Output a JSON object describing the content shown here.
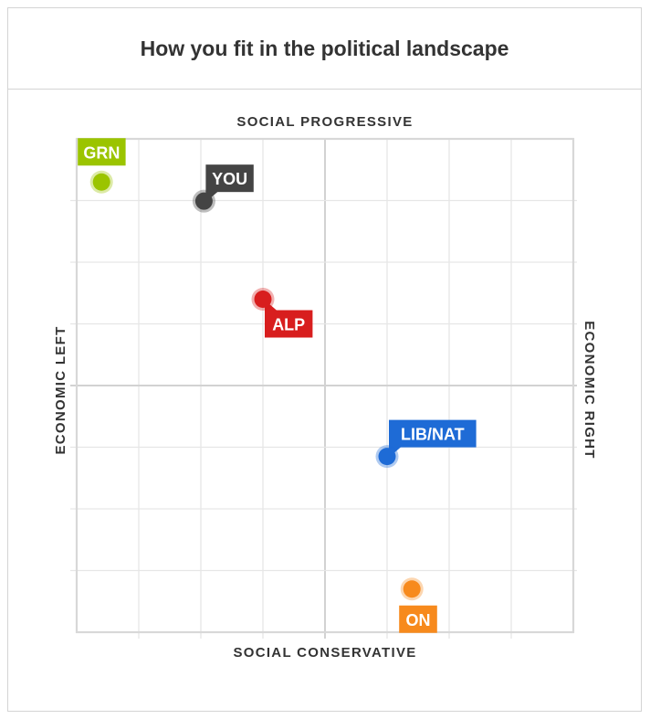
{
  "title": "How you fit in the political landscape",
  "chart_data": {
    "type": "scatter",
    "axes": {
      "top": "SOCIAL PROGRESSIVE",
      "bottom": "SOCIAL CONSERVATIVE",
      "left": "ECONOMIC LEFT",
      "right": "ECONOMIC RIGHT"
    },
    "xlim": [
      0,
      8
    ],
    "ylim": [
      0,
      8
    ],
    "grid": true,
    "points": [
      {
        "label": "GRN",
        "x": 0.4,
        "y": 7.3,
        "color": "#9bc400",
        "tag": "above"
      },
      {
        "label": "YOU",
        "x": 2.05,
        "y": 6.99,
        "color": "#444444",
        "tag": "upper-right"
      },
      {
        "label": "ALP",
        "x": 3.0,
        "y": 5.4,
        "color": "#d81e1e",
        "tag": "lower-right"
      },
      {
        "label": "LIB/NAT",
        "x": 5.0,
        "y": 2.85,
        "color": "#1e6bd6",
        "tag": "upper-right"
      },
      {
        "label": "ON",
        "x": 5.4,
        "y": 0.7,
        "color": "#f78a1d",
        "tag": "below"
      }
    ]
  }
}
